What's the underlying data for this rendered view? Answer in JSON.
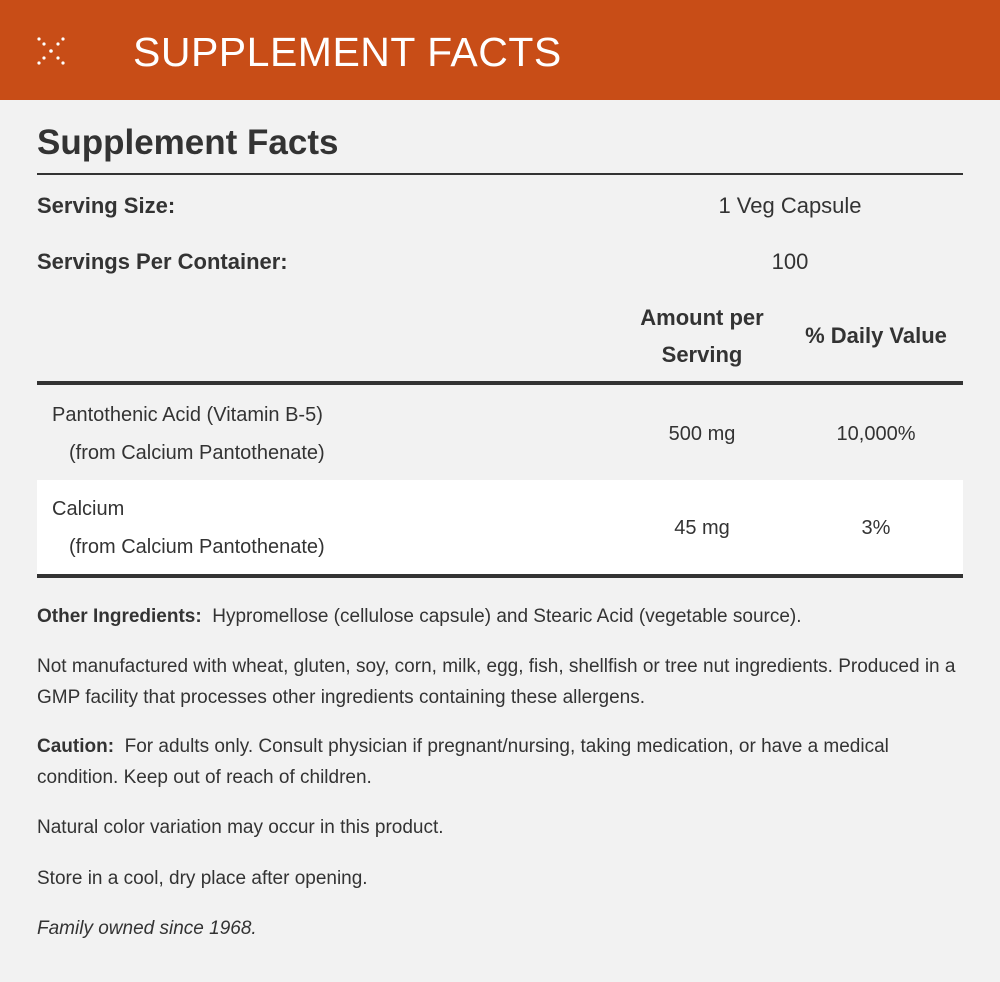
{
  "header": {
    "icon": "sparkle-cross-icon",
    "title": "SUPPLEMENT FACTS",
    "color": "#c84d17"
  },
  "panel": {
    "title": "Supplement Facts",
    "serving_size_label": "Serving Size:",
    "serving_size_value": "1 Veg Capsule",
    "servings_label": "Servings Per Container:",
    "servings_value": "100",
    "col_amount": "Amount per Serving",
    "col_amount_line1": "Amount per",
    "col_amount_line2": "Serving",
    "col_dv": "% Daily Value",
    "ingredients": [
      {
        "name": "Pantothenic Acid (Vitamin B-5)",
        "source": "(from Calcium Pantothenate)",
        "amount": "500 mg",
        "dv": "10,000%"
      },
      {
        "name": "Calcium",
        "source": "(from Calcium Pantothenate)",
        "amount": "45 mg",
        "dv": "3%"
      }
    ]
  },
  "notes": {
    "other_label": "Other Ingredients:",
    "other_text": "Hypromellose (cellulose capsule) and Stearic Acid (vegetable source).",
    "allergen_text": "Not manufactured with wheat, gluten, soy, corn, milk, egg, fish, shellfish or tree nut ingredients. Produced in a GMP facility that processes other ingredients containing these allergens.",
    "caution_label": "Caution:",
    "caution_text": "For adults only. Consult physician if pregnant/nursing, taking medication, or have a medical condition. Keep out of reach of children.",
    "color_text": "Natural color variation may occur in this product.",
    "store_text": "Store in a cool, dry place after opening.",
    "family_text": "Family owned since 1968."
  }
}
